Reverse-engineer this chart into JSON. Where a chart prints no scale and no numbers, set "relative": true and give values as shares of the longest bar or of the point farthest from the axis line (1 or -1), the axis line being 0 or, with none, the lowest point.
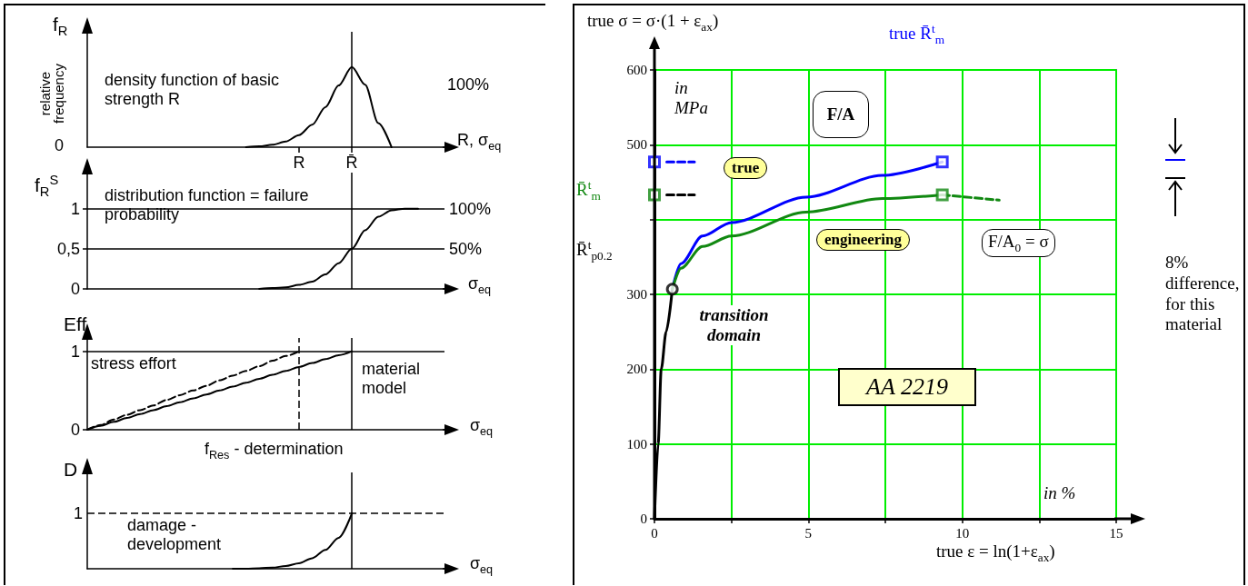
{
  "chart_data": [
    {
      "type": "line",
      "title": "density function of basic strength R",
      "xlabel": "R, σ$_{eq}$",
      "ylabel": "f$_{R}$",
      "relative": true,
      "marker": "none",
      "categories": [
        null,
        null,
        null,
        null,
        null,
        null,
        null,
        null,
        null,
        null,
        null,
        null,
        null,
        null,
        null,
        null,
        "R",
        null,
        null,
        null,
        "R̄",
        null,
        null,
        null,
        null,
        null,
        null,
        null
      ],
      "annotations": [
        "relative frequency",
        "0",
        "100%"
      ],
      "ref_lines": [
        {
          "axis": "x",
          "value": "R̄",
          "color": "#000000"
        }
      ],
      "series": [
        {
          "color": "#000000",
          "values": [
            null,
            null,
            null,
            null,
            null,
            null,
            null,
            null,
            null,
            null,
            null,
            null,
            0,
            0.01,
            0.03,
            0.07,
            0.15,
            0.28,
            0.5,
            0.77,
            1,
            0.78,
            0.3,
            0,
            null,
            null,
            null,
            null
          ]
        }
      ]
    },
    {
      "type": "line",
      "title": "distribution function = failure probability",
      "xlabel": "σ$_{eq}$",
      "ylabel": "f$_{R}$$^{S}$",
      "marker": "none",
      "tick_labels": "y",
      "categories": [
        null,
        null,
        null,
        null,
        null,
        null,
        null,
        null,
        null,
        null,
        null,
        null,
        null,
        null,
        null,
        null,
        "R",
        null,
        null,
        null,
        "R̄",
        null,
        null,
        null,
        null,
        null,
        null,
        null
      ],
      "ylim": [
        0,
        1.45
      ],
      "yticks": [
        0,
        {
          "value": 0.5,
          "label": "0,5"
        },
        1
      ],
      "ref_lines": [
        {
          "axis": "y",
          "value": 1,
          "label": "100%",
          "color": "#000000"
        },
        {
          "axis": "y",
          "value": 0.5,
          "label": "50%",
          "color": "#000000"
        },
        {
          "axis": "x",
          "value": "R̄",
          "color": "#000000"
        }
      ],
      "series": [
        {
          "color": "#000000",
          "values": [
            null,
            null,
            null,
            null,
            null,
            null,
            null,
            null,
            null,
            null,
            null,
            null,
            null,
            0,
            0.01,
            0.02,
            0.05,
            0.09,
            0.18,
            0.32,
            0.5,
            0.73,
            0.9,
            0.98,
            1,
            1,
            null,
            null
          ]
        }
      ]
    },
    {
      "type": "line",
      "ylabel": "Eff",
      "xlabel": "σ$_{eq}$",
      "marker": "none",
      "tick_labels": "y",
      "categories": [
        null,
        null,
        null,
        null,
        null,
        null,
        null,
        null,
        null,
        null,
        null,
        null,
        null,
        null,
        null,
        null,
        "R",
        null,
        null,
        null,
        "R̄",
        null,
        null,
        null,
        null,
        null,
        null,
        null
      ],
      "ylim": [
        0,
        1.17
      ],
      "yticks": [
        0,
        1
      ],
      "annotations": [
        "stress effort",
        "material model",
        "f$_{Res}$ - determination"
      ],
      "ref_lines": [
        {
          "axis": "y",
          "value": 1,
          "color": "#000000"
        },
        {
          "axis": "x",
          "value": "R",
          "color": "#000000",
          "line_style": "dashed"
        },
        {
          "axis": "x",
          "value": "R̄",
          "color": "#000000"
        }
      ],
      "series": [
        {
          "color": "#000000",
          "line_style": "dashed",
          "values": [
            0,
            0.06,
            0.13,
            0.19,
            0.25,
            0.31,
            0.38,
            0.44,
            0.5,
            0.56,
            0.63,
            0.69,
            0.75,
            0.81,
            0.88,
            0.94,
            1,
            null,
            null,
            null,
            null,
            null,
            null,
            null,
            null,
            null,
            null,
            null
          ]
        },
        {
          "color": "#000000",
          "values": [
            0,
            0.05,
            0.1,
            0.15,
            0.2,
            0.25,
            0.3,
            0.35,
            0.4,
            0.45,
            0.5,
            0.55,
            0.6,
            0.65,
            0.7,
            0.75,
            0.8,
            0.85,
            0.9,
            0.95,
            1,
            null,
            null,
            null,
            null,
            null,
            null,
            null
          ]
        }
      ]
    },
    {
      "type": "line",
      "ylabel": "D",
      "xlabel": "σ$_{eq}$",
      "relative": true,
      "marker": "none",
      "tick_labels": false,
      "categories": [
        null,
        null,
        null,
        null,
        null,
        null,
        null,
        null,
        null,
        null,
        null,
        null,
        null,
        null,
        null,
        null,
        "R",
        null,
        null,
        null,
        "R̄",
        null,
        null,
        null,
        null,
        null,
        null,
        null
      ],
      "annotations": [
        "damage - development"
      ],
      "ref_lines": [
        {
          "axis": "y",
          "value": 1,
          "label": "1",
          "color": "#000000",
          "line_style": "dashed"
        },
        {
          "axis": "x",
          "value": "R̄",
          "color": "#000000"
        }
      ],
      "series": [
        {
          "color": "#000000",
          "values": [
            null,
            null,
            null,
            null,
            null,
            null,
            null,
            null,
            null,
            null,
            null,
            0,
            0,
            0.01,
            0.02,
            0.05,
            0.1,
            0.19,
            0.34,
            0.56,
            1,
            null,
            null,
            null,
            null,
            null,
            null,
            null
          ]
        }
      ]
    },
    {
      "type": "line",
      "title": "true σ = σ·(1 + ε$_{ax}$)",
      "xlabel": "true ε = ln(1+ε$_{ax}$)",
      "marker": "none",
      "grid": true,
      "xlim": [
        0,
        15
      ],
      "ylim": [
        0,
        600
      ],
      "xticks": [
        0,
        {
          "value": 2.5,
          "label": null
        },
        5,
        {
          "value": 7.5,
          "label": null
        },
        10,
        {
          "value": 12.5,
          "label": null
        },
        15
      ],
      "yticks": [
        0,
        100,
        200,
        300,
        {
          "value": 400,
          "label": null
        },
        500,
        600
      ],
      "annotations": [
        "in MPa",
        "in %",
        "true R̄$^{t}$$_{m}$",
        "R̄$^{t}$$_{m}$",
        "R̄$^{t}$$_{p0.2}$",
        "F/A",
        "F/A$_{0}$ = σ",
        "transition domain",
        "AA 2219",
        "8% difference, for this material"
      ],
      "series": [
        {
          "color": "#000000",
          "x": [
            0,
            0.12,
            0.22,
            0.38,
            0.58
          ],
          "values": [
            0,
            100,
            200,
            250,
            307
          ]
        },
        {
          "name": "true",
          "color": "#0000ff",
          "x": [
            0.58,
            0.86,
            1.56,
            2.5,
            4.93,
            7.4,
            9.35
          ],
          "values": [
            307,
            341,
            378,
            396,
            430,
            459,
            477
          ]
        },
        {
          "name": "engineering",
          "color": "#118811",
          "x": [
            0.58,
            0.86,
            1.56,
            2.5,
            4.93,
            7.4,
            9.35
          ],
          "values": [
            307,
            335,
            364,
            378,
            410,
            428,
            433
          ]
        },
        {
          "color": "#118811",
          "x": [
            9.35,
            11.2
          ],
          "values": [
            433,
            426
          ],
          "line_style": "dashed"
        },
        {
          "color": "#0000ff",
          "x": [
            0.4,
            1.3
          ],
          "values": [
            477,
            477
          ],
          "line_style": "dashed"
        },
        {
          "color": "#000000",
          "x": [
            0.4,
            1.3
          ],
          "values": [
            433,
            433
          ],
          "line_style": "dashed"
        },
        {
          "type": "scatter",
          "color": "#000000",
          "x": [
            0.58
          ],
          "values": [
            307
          ],
          "marker": "circle"
        },
        {
          "type": "scatter",
          "color": "#0000ff",
          "x": [
            0,
            9.35
          ],
          "values": [
            477,
            477
          ],
          "marker": "square"
        },
        {
          "type": "scatter",
          "color": "#118811",
          "x": [
            0,
            9.35
          ],
          "values": [
            433,
            433
          ],
          "marker": "square"
        }
      ]
    }
  ]
}
